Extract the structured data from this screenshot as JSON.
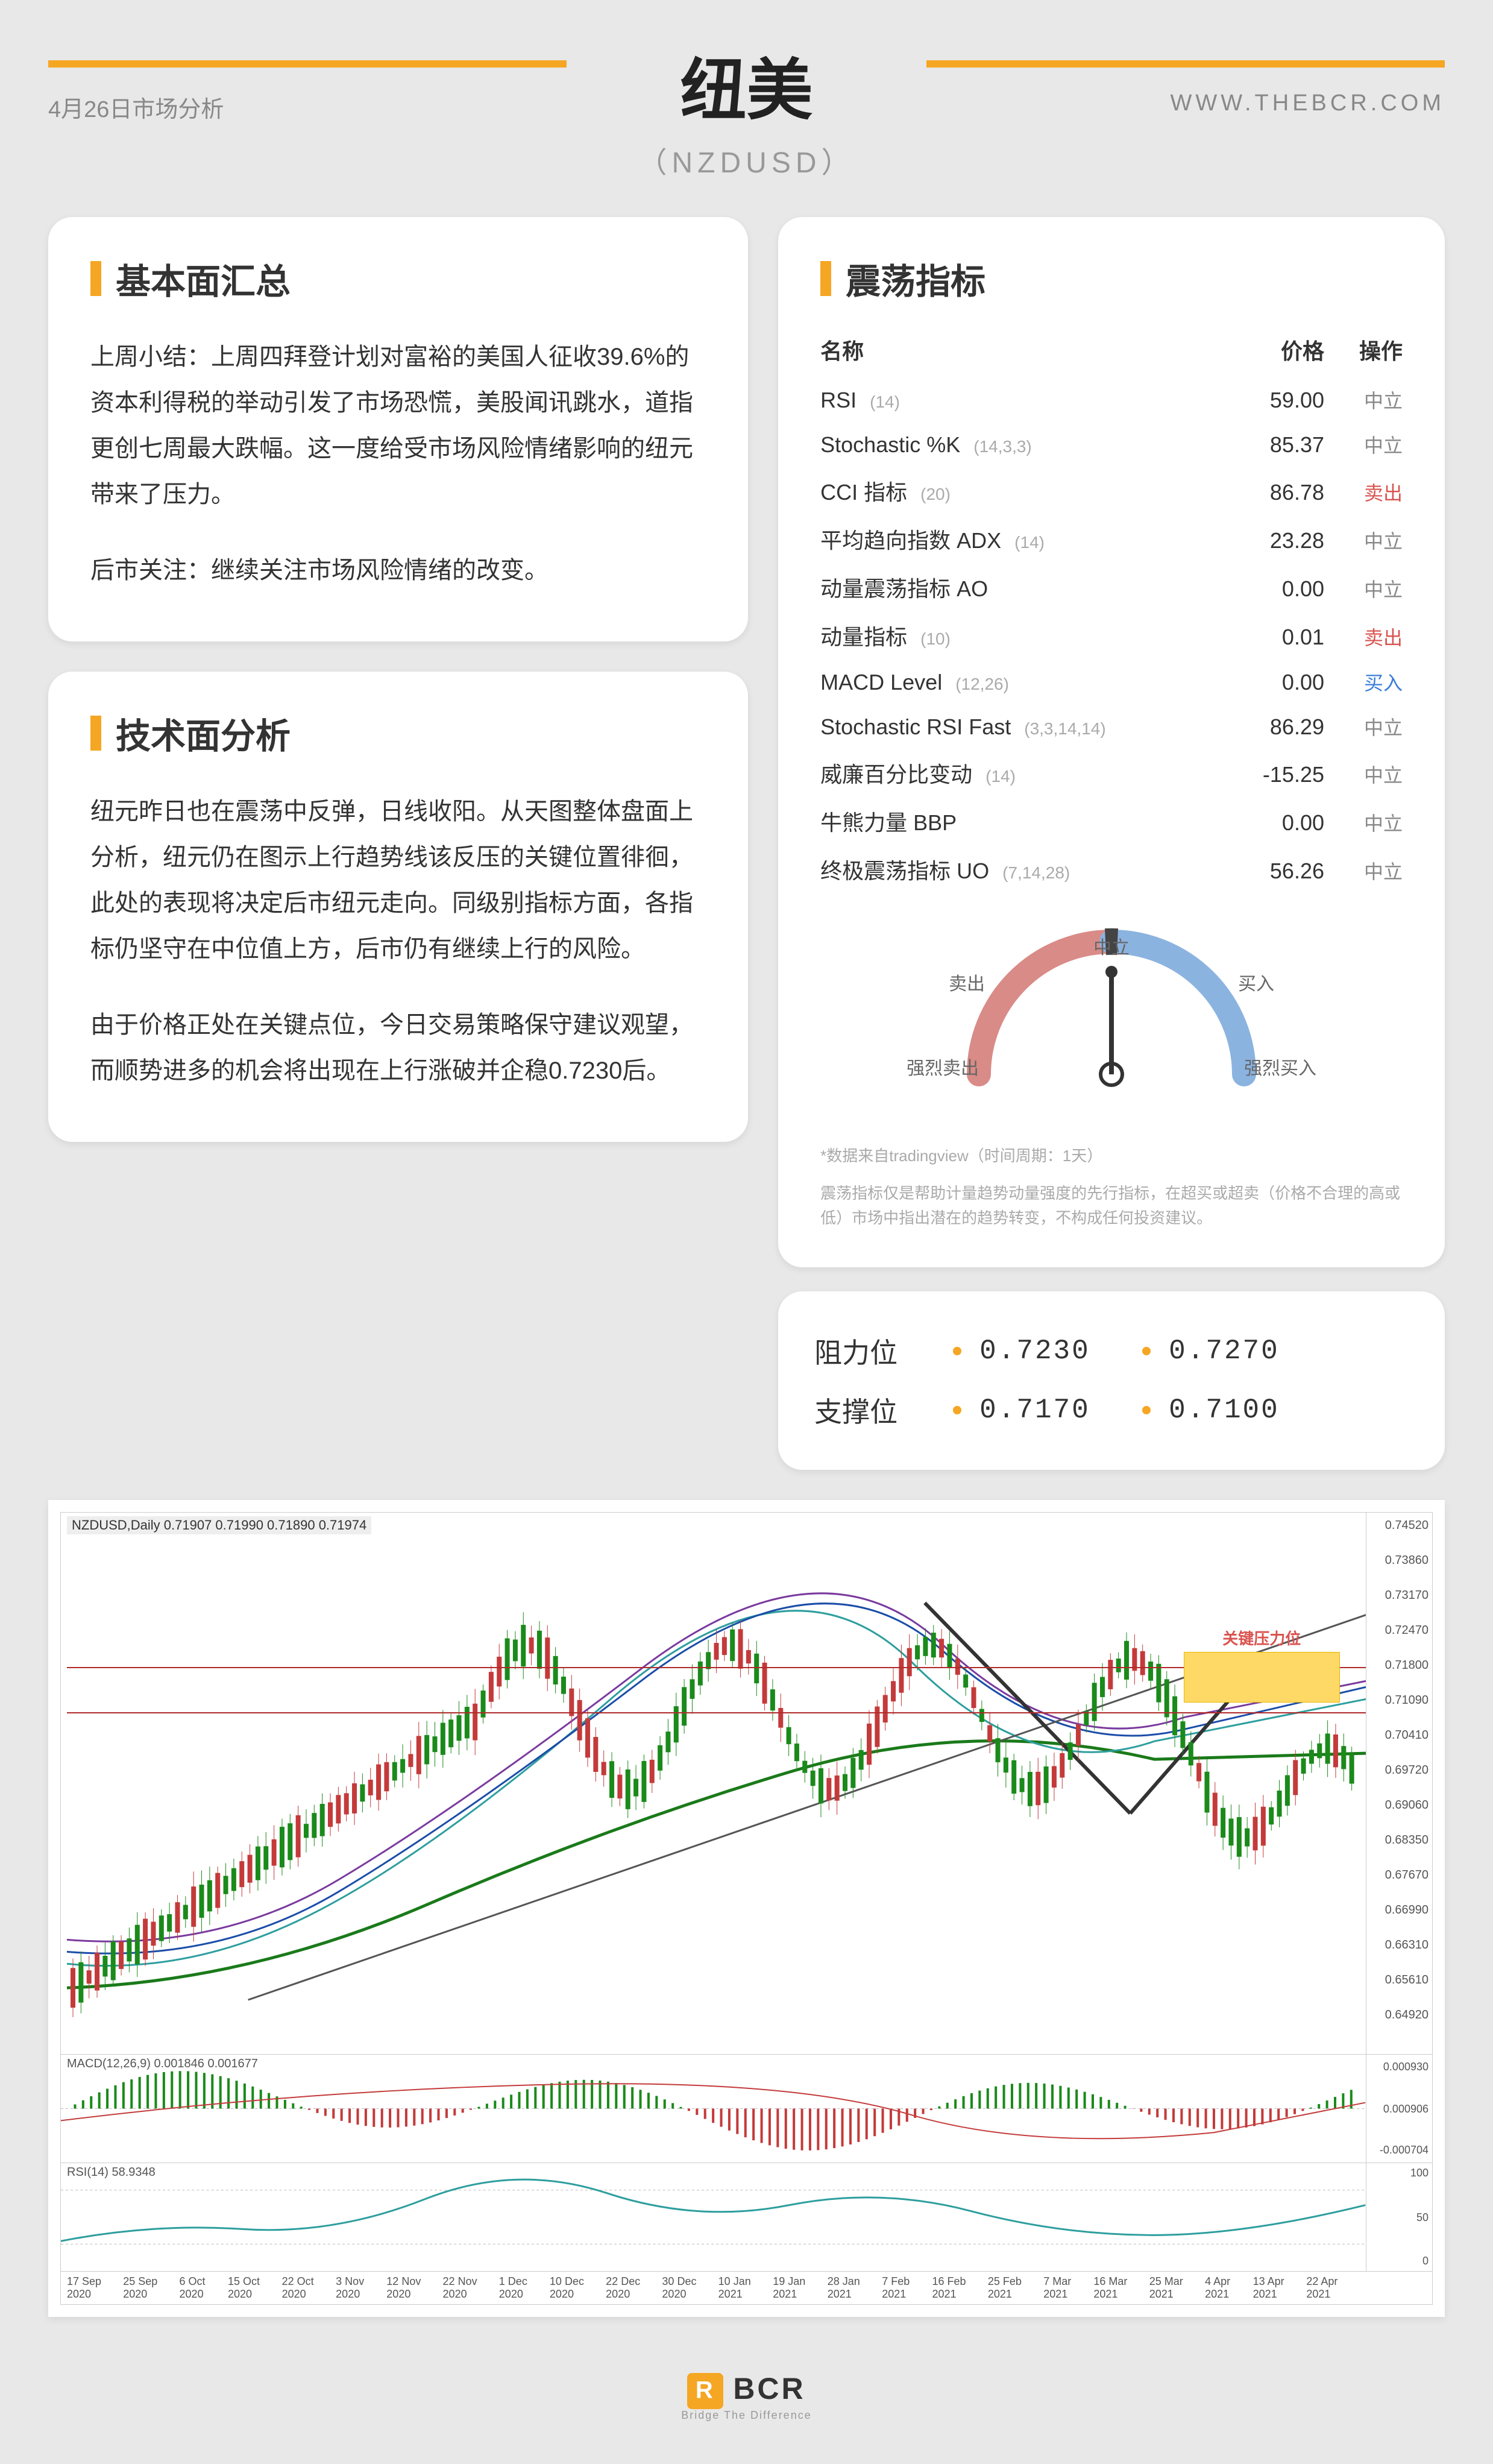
{
  "header": {
    "title": "纽美",
    "subtitle": "（NZDUSD）",
    "date": "4月26日市场分析",
    "url": "WWW.THEBCR.COM"
  },
  "fundamentals": {
    "title": "基本面汇总",
    "p1": "上周小结：上周四拜登计划对富裕的美国人征收39.6%的资本利得税的举动引发了市场恐慌，美股闻讯跳水，道指更创七周最大跌幅。这一度给受市场风险情绪影响的纽元带来了压力。",
    "p2": "后市关注：继续关注市场风险情绪的改变。"
  },
  "technical": {
    "title": "技术面分析",
    "p1": "纽元昨日也在震荡中反弹，日线收阳。从天图整体盘面上分析，纽元仍在图示上行趋势线该反压的关键位置徘徊，此处的表现将决定后市纽元走向。同级别指标方面，各指标仍坚守在中位值上方，后市仍有继续上行的风险。",
    "p2": "由于价格正处在关键点位，今日交易策略保守建议观望，而顺势进多的机会将出现在上行涨破并企稳0.7230后。"
  },
  "oscillators": {
    "title": "震荡指标",
    "header_name": "名称",
    "header_price": "价格",
    "header_action": "操作",
    "rows": [
      {
        "name": "RSI",
        "param": "(14)",
        "value": "59.00",
        "action": "中立",
        "cls": "act-neutral"
      },
      {
        "name": "Stochastic %K",
        "param": "(14,3,3)",
        "value": "85.37",
        "action": "中立",
        "cls": "act-neutral"
      },
      {
        "name": "CCI 指标",
        "param": "(20)",
        "value": "86.78",
        "action": "卖出",
        "cls": "act-sell"
      },
      {
        "name": "平均趋向指数 ADX",
        "param": "(14)",
        "value": "23.28",
        "action": "中立",
        "cls": "act-neutral"
      },
      {
        "name": "动量震荡指标 AO",
        "param": "",
        "value": "0.00",
        "action": "中立",
        "cls": "act-neutral"
      },
      {
        "name": "动量指标",
        "param": "(10)",
        "value": "0.01",
        "action": "卖出",
        "cls": "act-sell"
      },
      {
        "name": "MACD Level",
        "param": "(12,26)",
        "value": "0.00",
        "action": "买入",
        "cls": "act-buy"
      },
      {
        "name": "Stochastic RSI Fast",
        "param": "(3,3,14,14)",
        "value": "86.29",
        "action": "中立",
        "cls": "act-neutral"
      },
      {
        "name": "威廉百分比变动",
        "param": "(14)",
        "value": "-15.25",
        "action": "中立",
        "cls": "act-neutral"
      },
      {
        "name": "牛熊力量 BBP",
        "param": "",
        "value": "0.00",
        "action": "中立",
        "cls": "act-neutral"
      },
      {
        "name": "终极震荡指标 UO",
        "param": "(7,14,28)",
        "value": "56.26",
        "action": "中立",
        "cls": "act-neutral"
      }
    ],
    "gauge": {
      "neutral": "中立",
      "sell": "卖出",
      "buy": "买入",
      "strong_sell": "强烈卖出",
      "strong_buy": "强烈买入",
      "needle_angle": -90,
      "colors": {
        "sell": "#d98b87",
        "buy": "#8bb3e0",
        "track": "#ddd"
      }
    },
    "disclaimer1": "*数据来自tradingview（时间周期：1天）",
    "disclaimer2": "震荡指标仅是帮助计量趋势动量强度的先行指标，在超买或超卖（价格不合理的高或低）市场中指出潜在的趋势转变，不构成任何投资建议。"
  },
  "levels": {
    "resistance_label": "阻力位",
    "support_label": "支撑位",
    "r1": "0.7230",
    "r2": "0.7270",
    "s1": "0.7170",
    "s2": "0.7100"
  },
  "chart": {
    "info": "NZDUSD,Daily 0.71907 0.71990 0.71890 0.71974",
    "resistance_label": "关键压力位",
    "yticks": [
      "0.74520",
      "0.73860",
      "0.73170",
      "0.72470",
      "0.71800",
      "0.71090",
      "0.70410",
      "0.69720",
      "0.69060",
      "0.68350",
      "0.67670",
      "0.66990",
      "0.66310",
      "0.65610",
      "0.64920",
      "0.000930",
      "0.000906",
      "-0.000704",
      "100",
      "50",
      "0"
    ],
    "xticks": [
      "17 Sep 2020",
      "25 Sep 2020",
      "6 Oct 2020",
      "15 Oct 2020",
      "22 Oct 2020",
      "3 Nov 2020",
      "12 Nov 2020",
      "22 Nov 2020",
      "1 Dec 2020",
      "10 Dec 2020",
      "22 Dec 2020",
      "30 Dec 2020",
      "10 Jan 2021",
      "19 Jan 2021",
      "28 Jan 2021",
      "7 Feb 2021",
      "16 Feb 2021",
      "25 Feb 2021",
      "7 Mar 2021",
      "16 Mar 2021",
      "25 Mar 2021",
      "4 Apr 2021",
      "13 Apr 2021",
      "22 Apr 2021"
    ],
    "macd_label": "MACD(12,26,9) 0.001846 0.001677",
    "rsi_label": "RSI(14) 58.9348",
    "colors": {
      "ma_teal": "#2e9e9e",
      "ma_green": "#1a7a1a",
      "ma_blue": "#1a4da8",
      "ma_purple": "#7a3a9e",
      "candle_up": "#1a8a1a",
      "candle_down": "#c43a3a",
      "resistance_line": "#b02a2a",
      "support_line": "#b02a2a",
      "trend_line": "#555",
      "resistance_box": "#ffd966"
    }
  },
  "footer": {
    "brand": "BCR",
    "tagline": "Bridge The Difference"
  }
}
